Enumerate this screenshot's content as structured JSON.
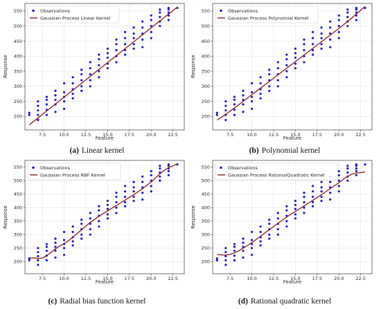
{
  "figure": {
    "panels": [
      {
        "tag": "(a)",
        "caption": "Linear kernel",
        "legend_obs": "Observations",
        "legend_fit": "Gaussian Process Linear Kernel"
      },
      {
        "tag": "(b)",
        "caption": "Polynomial kernel",
        "legend_obs": "Observations",
        "legend_fit": "Gaussian Process Polynomial Kernel"
      },
      {
        "tag": "(c)",
        "caption": "Radial bias function kernel",
        "legend_obs": "Observations",
        "legend_fit": "Gaussian Process RBF Kernel"
      },
      {
        "tag": "(d)",
        "caption": "Rational quadratic kernel",
        "legend_obs": "Observations",
        "legend_fit": "Gaussian Process RationalQuadratic Kernel"
      }
    ]
  },
  "chart_data": [
    {
      "type": "scatter",
      "xlabel": "Feature",
      "ylabel": "Response",
      "xlim": [
        5.5,
        23.8
      ],
      "ylim": [
        155,
        575
      ],
      "xticks": [
        "7.5",
        "10.0",
        "12.5",
        "15.0",
        "17.5",
        "20.0",
        "22.5"
      ],
      "yticks": [
        "200",
        "250",
        "300",
        "350",
        "400",
        "450",
        "500",
        "550"
      ],
      "grid": true,
      "legend": "top-left",
      "colors": {
        "observations": "#1a14d8",
        "fit": "#8b1a1a"
      },
      "series": [
        {
          "name": "Observations",
          "kind": "points",
          "x": [
            6,
            6,
            7,
            7,
            7,
            7,
            7,
            8,
            8,
            8,
            8,
            8,
            9,
            9,
            9,
            9,
            9,
            10,
            10,
            10,
            10,
            10,
            11,
            11,
            11,
            11,
            11,
            12,
            12,
            12,
            12,
            12,
            13,
            13,
            13,
            13,
            13,
            14,
            14,
            14,
            14,
            14,
            15,
            15,
            15,
            15,
            15,
            16,
            16,
            16,
            16,
            16,
            17,
            17,
            17,
            17,
            17,
            18,
            18,
            18,
            18,
            18,
            19,
            19,
            19,
            19,
            19,
            20,
            20,
            20,
            20,
            20,
            21,
            21,
            21,
            21,
            21,
            22,
            22,
            22,
            22,
            22,
            23
          ],
          "y": [
            205,
            212,
            188,
            205,
            220,
            235,
            250,
            205,
            222,
            240,
            255,
            265,
            215,
            240,
            255,
            270,
            285,
            225,
            250,
            265,
            280,
            310,
            260,
            275,
            290,
            310,
            330,
            285,
            300,
            320,
            340,
            355,
            300,
            320,
            340,
            360,
            380,
            330,
            350,
            370,
            390,
            405,
            360,
            375,
            395,
            410,
            425,
            380,
            400,
            420,
            440,
            455,
            405,
            420,
            440,
            460,
            480,
            425,
            440,
            460,
            475,
            495,
            430,
            455,
            475,
            495,
            515,
            460,
            480,
            500,
            520,
            535,
            500,
            515,
            530,
            545,
            555,
            520,
            535,
            545,
            555,
            560,
            560
          ]
        },
        {
          "name": "Gaussian Process Linear Kernel",
          "kind": "line",
          "x": [
            6,
            7,
            8,
            9,
            10,
            11,
            12,
            13,
            14,
            15,
            16,
            17,
            18,
            19,
            20,
            21,
            22,
            23
          ],
          "y": [
            172,
            195,
            218,
            241,
            264,
            287,
            310,
            333,
            356,
            379,
            402,
            425,
            448,
            471,
            494,
            517,
            540,
            563
          ]
        }
      ]
    },
    {
      "type": "scatter",
      "xlabel": "Feature",
      "ylabel": "Response",
      "xlim": [
        5.5,
        23.8
      ],
      "ylim": [
        155,
        575
      ],
      "xticks": [
        "7.5",
        "10.0",
        "12.5",
        "15.0",
        "17.5",
        "20.0",
        "22.5"
      ],
      "yticks": [
        "200",
        "250",
        "300",
        "350",
        "400",
        "450",
        "500",
        "550"
      ],
      "grid": true,
      "legend": "top-left",
      "colors": {
        "observations": "#1a14d8",
        "fit": "#8b1a1a"
      },
      "series": [
        {
          "name": "Observations",
          "kind": "points",
          "x": [
            6,
            6,
            7,
            7,
            7,
            7,
            7,
            8,
            8,
            8,
            8,
            8,
            9,
            9,
            9,
            9,
            9,
            10,
            10,
            10,
            10,
            10,
            11,
            11,
            11,
            11,
            11,
            12,
            12,
            12,
            12,
            12,
            13,
            13,
            13,
            13,
            13,
            14,
            14,
            14,
            14,
            14,
            15,
            15,
            15,
            15,
            15,
            16,
            16,
            16,
            16,
            16,
            17,
            17,
            17,
            17,
            17,
            18,
            18,
            18,
            18,
            18,
            19,
            19,
            19,
            19,
            19,
            20,
            20,
            20,
            20,
            20,
            21,
            21,
            21,
            21,
            21,
            22,
            22,
            22,
            22,
            22,
            23
          ],
          "y": [
            205,
            212,
            188,
            205,
            220,
            235,
            250,
            205,
            222,
            240,
            255,
            265,
            215,
            240,
            255,
            270,
            285,
            225,
            250,
            265,
            280,
            310,
            260,
            275,
            290,
            310,
            330,
            285,
            300,
            320,
            340,
            355,
            300,
            320,
            340,
            360,
            380,
            330,
            350,
            370,
            390,
            405,
            360,
            375,
            395,
            410,
            425,
            380,
            400,
            420,
            440,
            455,
            405,
            420,
            440,
            460,
            480,
            425,
            440,
            460,
            475,
            495,
            430,
            455,
            475,
            495,
            515,
            460,
            480,
            500,
            520,
            535,
            500,
            515,
            530,
            545,
            555,
            520,
            535,
            545,
            555,
            560,
            560
          ]
        },
        {
          "name": "Gaussian Process Polynomial Kernel",
          "kind": "line",
          "x": [
            6,
            7,
            8,
            9,
            10,
            11,
            12,
            13,
            14,
            15,
            16,
            17,
            18,
            19,
            20,
            21,
            22,
            23
          ],
          "y": [
            188,
            207,
            228,
            250,
            272,
            294,
            316,
            338,
            360,
            382,
            404,
            426,
            448,
            470,
            492,
            515,
            540,
            565
          ]
        }
      ]
    },
    {
      "type": "scatter",
      "xlabel": "Feature",
      "ylabel": "Response",
      "xlim": [
        5.5,
        23.8
      ],
      "ylim": [
        155,
        575
      ],
      "xticks": [
        "7.5",
        "10.0",
        "12.5",
        "15.0",
        "17.5",
        "20.0",
        "22.5"
      ],
      "yticks": [
        "200",
        "250",
        "300",
        "350",
        "400",
        "450",
        "500",
        "550"
      ],
      "grid": true,
      "legend": "top-left",
      "colors": {
        "observations": "#1a14d8",
        "fit": "#8b1a1a"
      },
      "series": [
        {
          "name": "Observations",
          "kind": "points",
          "x": [
            6,
            6,
            7,
            7,
            7,
            7,
            7,
            8,
            8,
            8,
            8,
            8,
            9,
            9,
            9,
            9,
            9,
            10,
            10,
            10,
            10,
            10,
            11,
            11,
            11,
            11,
            11,
            12,
            12,
            12,
            12,
            12,
            13,
            13,
            13,
            13,
            13,
            14,
            14,
            14,
            14,
            14,
            15,
            15,
            15,
            15,
            15,
            16,
            16,
            16,
            16,
            16,
            17,
            17,
            17,
            17,
            17,
            18,
            18,
            18,
            18,
            18,
            19,
            19,
            19,
            19,
            19,
            20,
            20,
            20,
            20,
            20,
            21,
            21,
            21,
            21,
            21,
            22,
            22,
            22,
            22,
            22,
            23
          ],
          "y": [
            205,
            212,
            188,
            205,
            220,
            235,
            250,
            205,
            222,
            240,
            255,
            265,
            215,
            240,
            255,
            270,
            285,
            225,
            250,
            265,
            280,
            310,
            260,
            275,
            290,
            310,
            330,
            285,
            300,
            320,
            340,
            355,
            300,
            320,
            340,
            360,
            380,
            330,
            350,
            370,
            390,
            405,
            360,
            375,
            395,
            410,
            425,
            380,
            400,
            420,
            440,
            455,
            405,
            420,
            440,
            460,
            480,
            425,
            440,
            460,
            475,
            495,
            430,
            455,
            475,
            495,
            515,
            460,
            480,
            500,
            520,
            535,
            500,
            515,
            530,
            545,
            555,
            520,
            535,
            545,
            555,
            560,
            560
          ]
        },
        {
          "name": "Gaussian Process RBF Kernel",
          "kind": "line",
          "x": [
            6,
            6.5,
            7,
            7.5,
            8,
            8.5,
            9,
            9.5,
            10,
            10.5,
            11,
            12,
            13,
            14,
            15,
            16,
            17,
            18,
            19,
            20,
            20.5,
            21,
            21.5,
            22,
            22.5,
            23
          ],
          "y": [
            212,
            214,
            212,
            213,
            222,
            234,
            247,
            258,
            267,
            277,
            290,
            318,
            345,
            368,
            388,
            408,
            428,
            448,
            470,
            495,
            510,
            525,
            538,
            548,
            555,
            562
          ]
        }
      ]
    },
    {
      "type": "scatter",
      "xlabel": "Feature",
      "ylabel": "Response",
      "xlim": [
        5.5,
        23.8
      ],
      "ylim": [
        155,
        575
      ],
      "xticks": [
        "7.5",
        "10.0",
        "12.5",
        "15.0",
        "17.5",
        "20.0",
        "22.5"
      ],
      "yticks": [
        "200",
        "250",
        "300",
        "350",
        "400",
        "450",
        "500",
        "550"
      ],
      "grid": true,
      "legend": "top-left",
      "colors": {
        "observations": "#1a14d8",
        "fit": "#8b1a1a"
      },
      "series": [
        {
          "name": "Observations",
          "kind": "points",
          "x": [
            6,
            6,
            7,
            7,
            7,
            7,
            7,
            8,
            8,
            8,
            8,
            8,
            9,
            9,
            9,
            9,
            9,
            10,
            10,
            10,
            10,
            10,
            11,
            11,
            11,
            11,
            11,
            12,
            12,
            12,
            12,
            12,
            13,
            13,
            13,
            13,
            13,
            14,
            14,
            14,
            14,
            14,
            15,
            15,
            15,
            15,
            15,
            16,
            16,
            16,
            16,
            16,
            17,
            17,
            17,
            17,
            17,
            18,
            18,
            18,
            18,
            18,
            19,
            19,
            19,
            19,
            19,
            20,
            20,
            20,
            20,
            20,
            21,
            21,
            21,
            21,
            21,
            22,
            22,
            22,
            22,
            22,
            23
          ],
          "y": [
            205,
            212,
            188,
            205,
            220,
            235,
            250,
            205,
            222,
            240,
            255,
            265,
            215,
            240,
            255,
            270,
            285,
            225,
            250,
            265,
            280,
            310,
            260,
            275,
            290,
            310,
            330,
            285,
            300,
            320,
            340,
            355,
            300,
            320,
            340,
            360,
            380,
            330,
            350,
            370,
            390,
            405,
            360,
            375,
            395,
            410,
            425,
            380,
            400,
            420,
            440,
            455,
            405,
            420,
            440,
            460,
            480,
            425,
            440,
            460,
            475,
            495,
            430,
            455,
            475,
            495,
            515,
            460,
            480,
            500,
            520,
            535,
            500,
            515,
            530,
            545,
            555,
            520,
            535,
            545,
            555,
            560,
            560
          ]
        },
        {
          "name": "Gaussian Process RationalQuadratic Kernel",
          "kind": "line",
          "x": [
            6,
            6.5,
            7,
            7.5,
            8,
            8.5,
            9,
            9.5,
            10,
            10.5,
            11,
            12,
            13,
            14,
            15,
            16,
            17,
            18,
            19,
            20,
            20.5,
            21,
            21.5,
            22,
            22.5,
            23
          ],
          "y": [
            226,
            225,
            224,
            227,
            232,
            240,
            250,
            260,
            270,
            282,
            294,
            318,
            342,
            365,
            386,
            406,
            427,
            448,
            470,
            492,
            505,
            516,
            524,
            528,
            530,
            532
          ]
        }
      ]
    }
  ]
}
